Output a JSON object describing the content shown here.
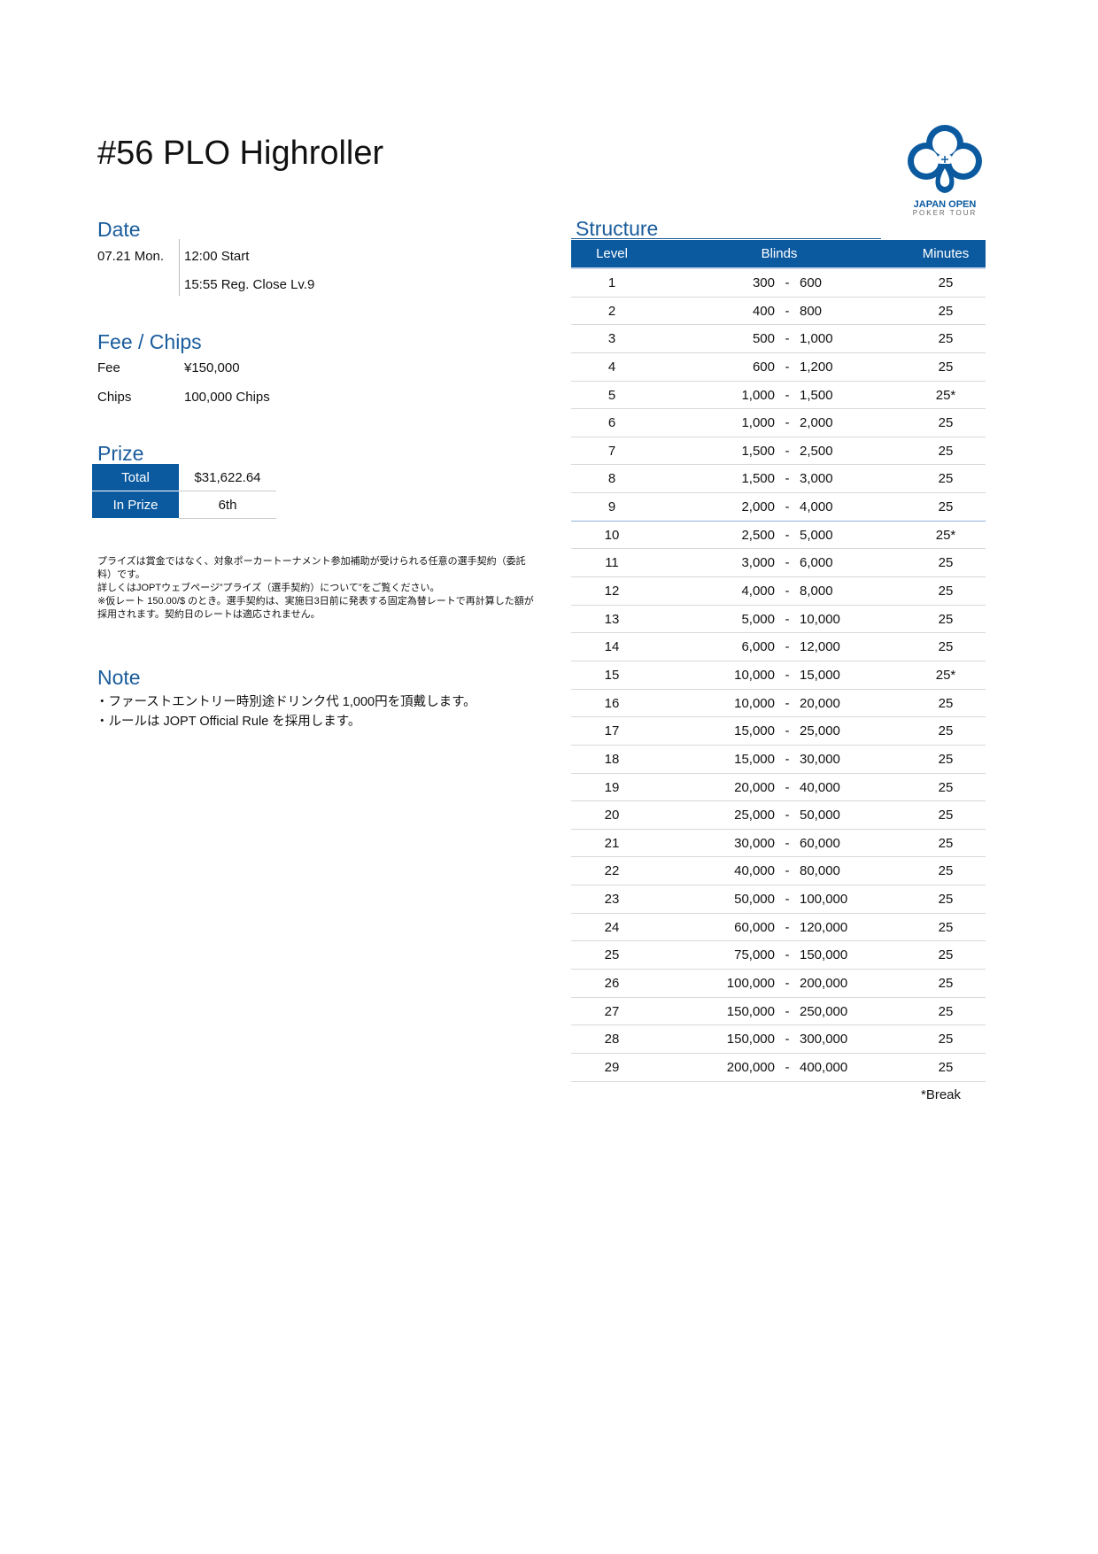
{
  "title": "#56 PLO Highroller",
  "logo": {
    "line1": "JAPAN OPEN",
    "line2": "POKER TOUR",
    "color": "#0b5aa0"
  },
  "date": {
    "heading": "Date",
    "day": "07.21 Mon.",
    "start": "12:00 Start",
    "reg_close": "15:55 Reg. Close Lv.9"
  },
  "fee_chips": {
    "heading": "Fee / Chips",
    "fee_label": "Fee",
    "fee_value": "¥150,000",
    "chips_label": "Chips",
    "chips_value": "100,000 Chips"
  },
  "prize": {
    "heading": "Prize",
    "total_label": "Total",
    "total_value": "$31,622.64",
    "inprize_label": "In Prize",
    "inprize_value": "6th",
    "disclaimer": [
      "プライズは賞金ではなく、対象ポーカートーナメント参加補助が受けられる任意の選手契約（委託料）です。",
      "詳しくはJOPTウェブページ”プライズ（選手契約）について”をご覧ください。",
      "※仮レート 150.00/$ のとき。選手契約は、実施日3日前に発表する固定為替レートで再計算した額が採用されます。契約日のレートは適応されません。"
    ]
  },
  "note": {
    "heading": "Note",
    "lines": [
      "・ファーストエントリー時別途ドリンク代 1,000円を頂戴します。",
      "・ルールは JOPT Official Rule を採用します。"
    ]
  },
  "structure": {
    "heading": "Structure",
    "columns": [
      "Level",
      "Blinds",
      "Minutes"
    ],
    "rows": [
      [
        "1",
        "300",
        "600",
        "25"
      ],
      [
        "2",
        "400",
        "800",
        "25"
      ],
      [
        "3",
        "500",
        "1,000",
        "25"
      ],
      [
        "4",
        "600",
        "1,200",
        "25"
      ],
      [
        "5",
        "1,000",
        "1,500",
        "25*"
      ],
      [
        "6",
        "1,000",
        "2,000",
        "25"
      ],
      [
        "7",
        "1,500",
        "2,500",
        "25"
      ],
      [
        "8",
        "1,500",
        "3,000",
        "25"
      ],
      [
        "9",
        "2,000",
        "4,000",
        "25"
      ],
      [
        "10",
        "2,500",
        "5,000",
        "25*"
      ],
      [
        "11",
        "3,000",
        "6,000",
        "25"
      ],
      [
        "12",
        "4,000",
        "8,000",
        "25"
      ],
      [
        "13",
        "5,000",
        "10,000",
        "25"
      ],
      [
        "14",
        "6,000",
        "12,000",
        "25"
      ],
      [
        "15",
        "10,000",
        "15,000",
        "25*"
      ],
      [
        "16",
        "10,000",
        "20,000",
        "25"
      ],
      [
        "17",
        "15,000",
        "25,000",
        "25"
      ],
      [
        "18",
        "15,000",
        "30,000",
        "25"
      ],
      [
        "19",
        "20,000",
        "40,000",
        "25"
      ],
      [
        "20",
        "25,000",
        "50,000",
        "25"
      ],
      [
        "21",
        "30,000",
        "60,000",
        "25"
      ],
      [
        "22",
        "40,000",
        "80,000",
        "25"
      ],
      [
        "23",
        "50,000",
        "100,000",
        "25"
      ],
      [
        "24",
        "60,000",
        "120,000",
        "25"
      ],
      [
        "25",
        "75,000",
        "150,000",
        "25"
      ],
      [
        "26",
        "100,000",
        "200,000",
        "25"
      ],
      [
        "27",
        "150,000",
        "250,000",
        "25"
      ],
      [
        "28",
        "150,000",
        "300,000",
        "25"
      ],
      [
        "29",
        "200,000",
        "400,000",
        "25"
      ]
    ],
    "separator": "-",
    "reg_close_level": 9,
    "footnote": "*Break"
  }
}
